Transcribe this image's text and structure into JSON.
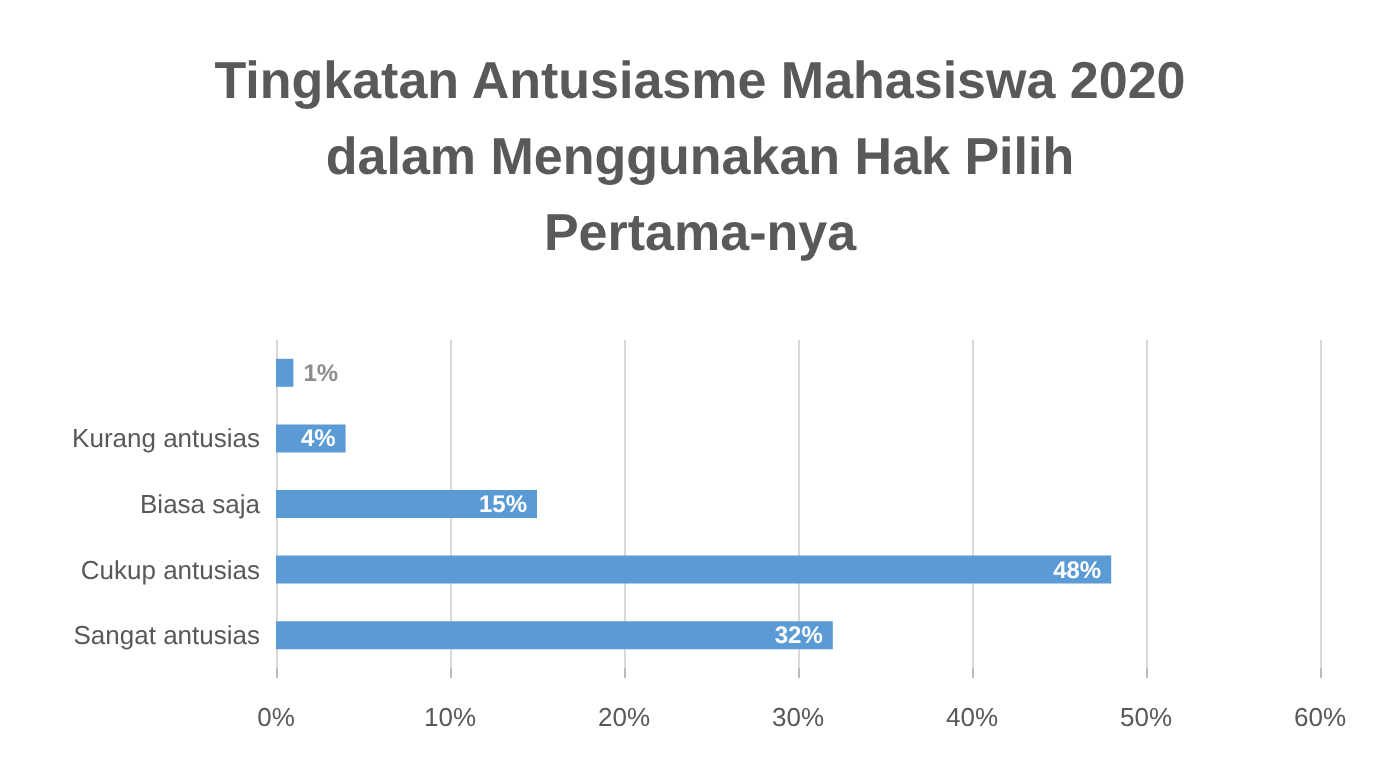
{
  "chart_data": {
    "type": "bar",
    "orientation": "horizontal",
    "title": "Tingkatan Antusiasme Mahasiswa 2020\ndalam Menggunakan Hak Pilih\nPertama-nya",
    "categories": [
      null,
      "Kurang antusias",
      "Biasa saja",
      "Cukup antusias",
      "Sangat antusias"
    ],
    "values": [
      1,
      4,
      15,
      48,
      32
    ],
    "value_labels": [
      "1%",
      "4%",
      "15%",
      "48%",
      "32%"
    ],
    "color": "#5b9bd5",
    "xlim": [
      0,
      60
    ],
    "xticks": [
      {
        "value": 0,
        "label": "0%"
      },
      {
        "value": 10,
        "label": "10%"
      },
      {
        "value": 20,
        "label": "20%"
      },
      {
        "value": 30,
        "label": "30%"
      },
      {
        "value": 40,
        "label": "40%"
      },
      {
        "value": 50,
        "label": "50%"
      },
      {
        "value": 60,
        "label": "60%"
      }
    ],
    "grid": "x"
  }
}
